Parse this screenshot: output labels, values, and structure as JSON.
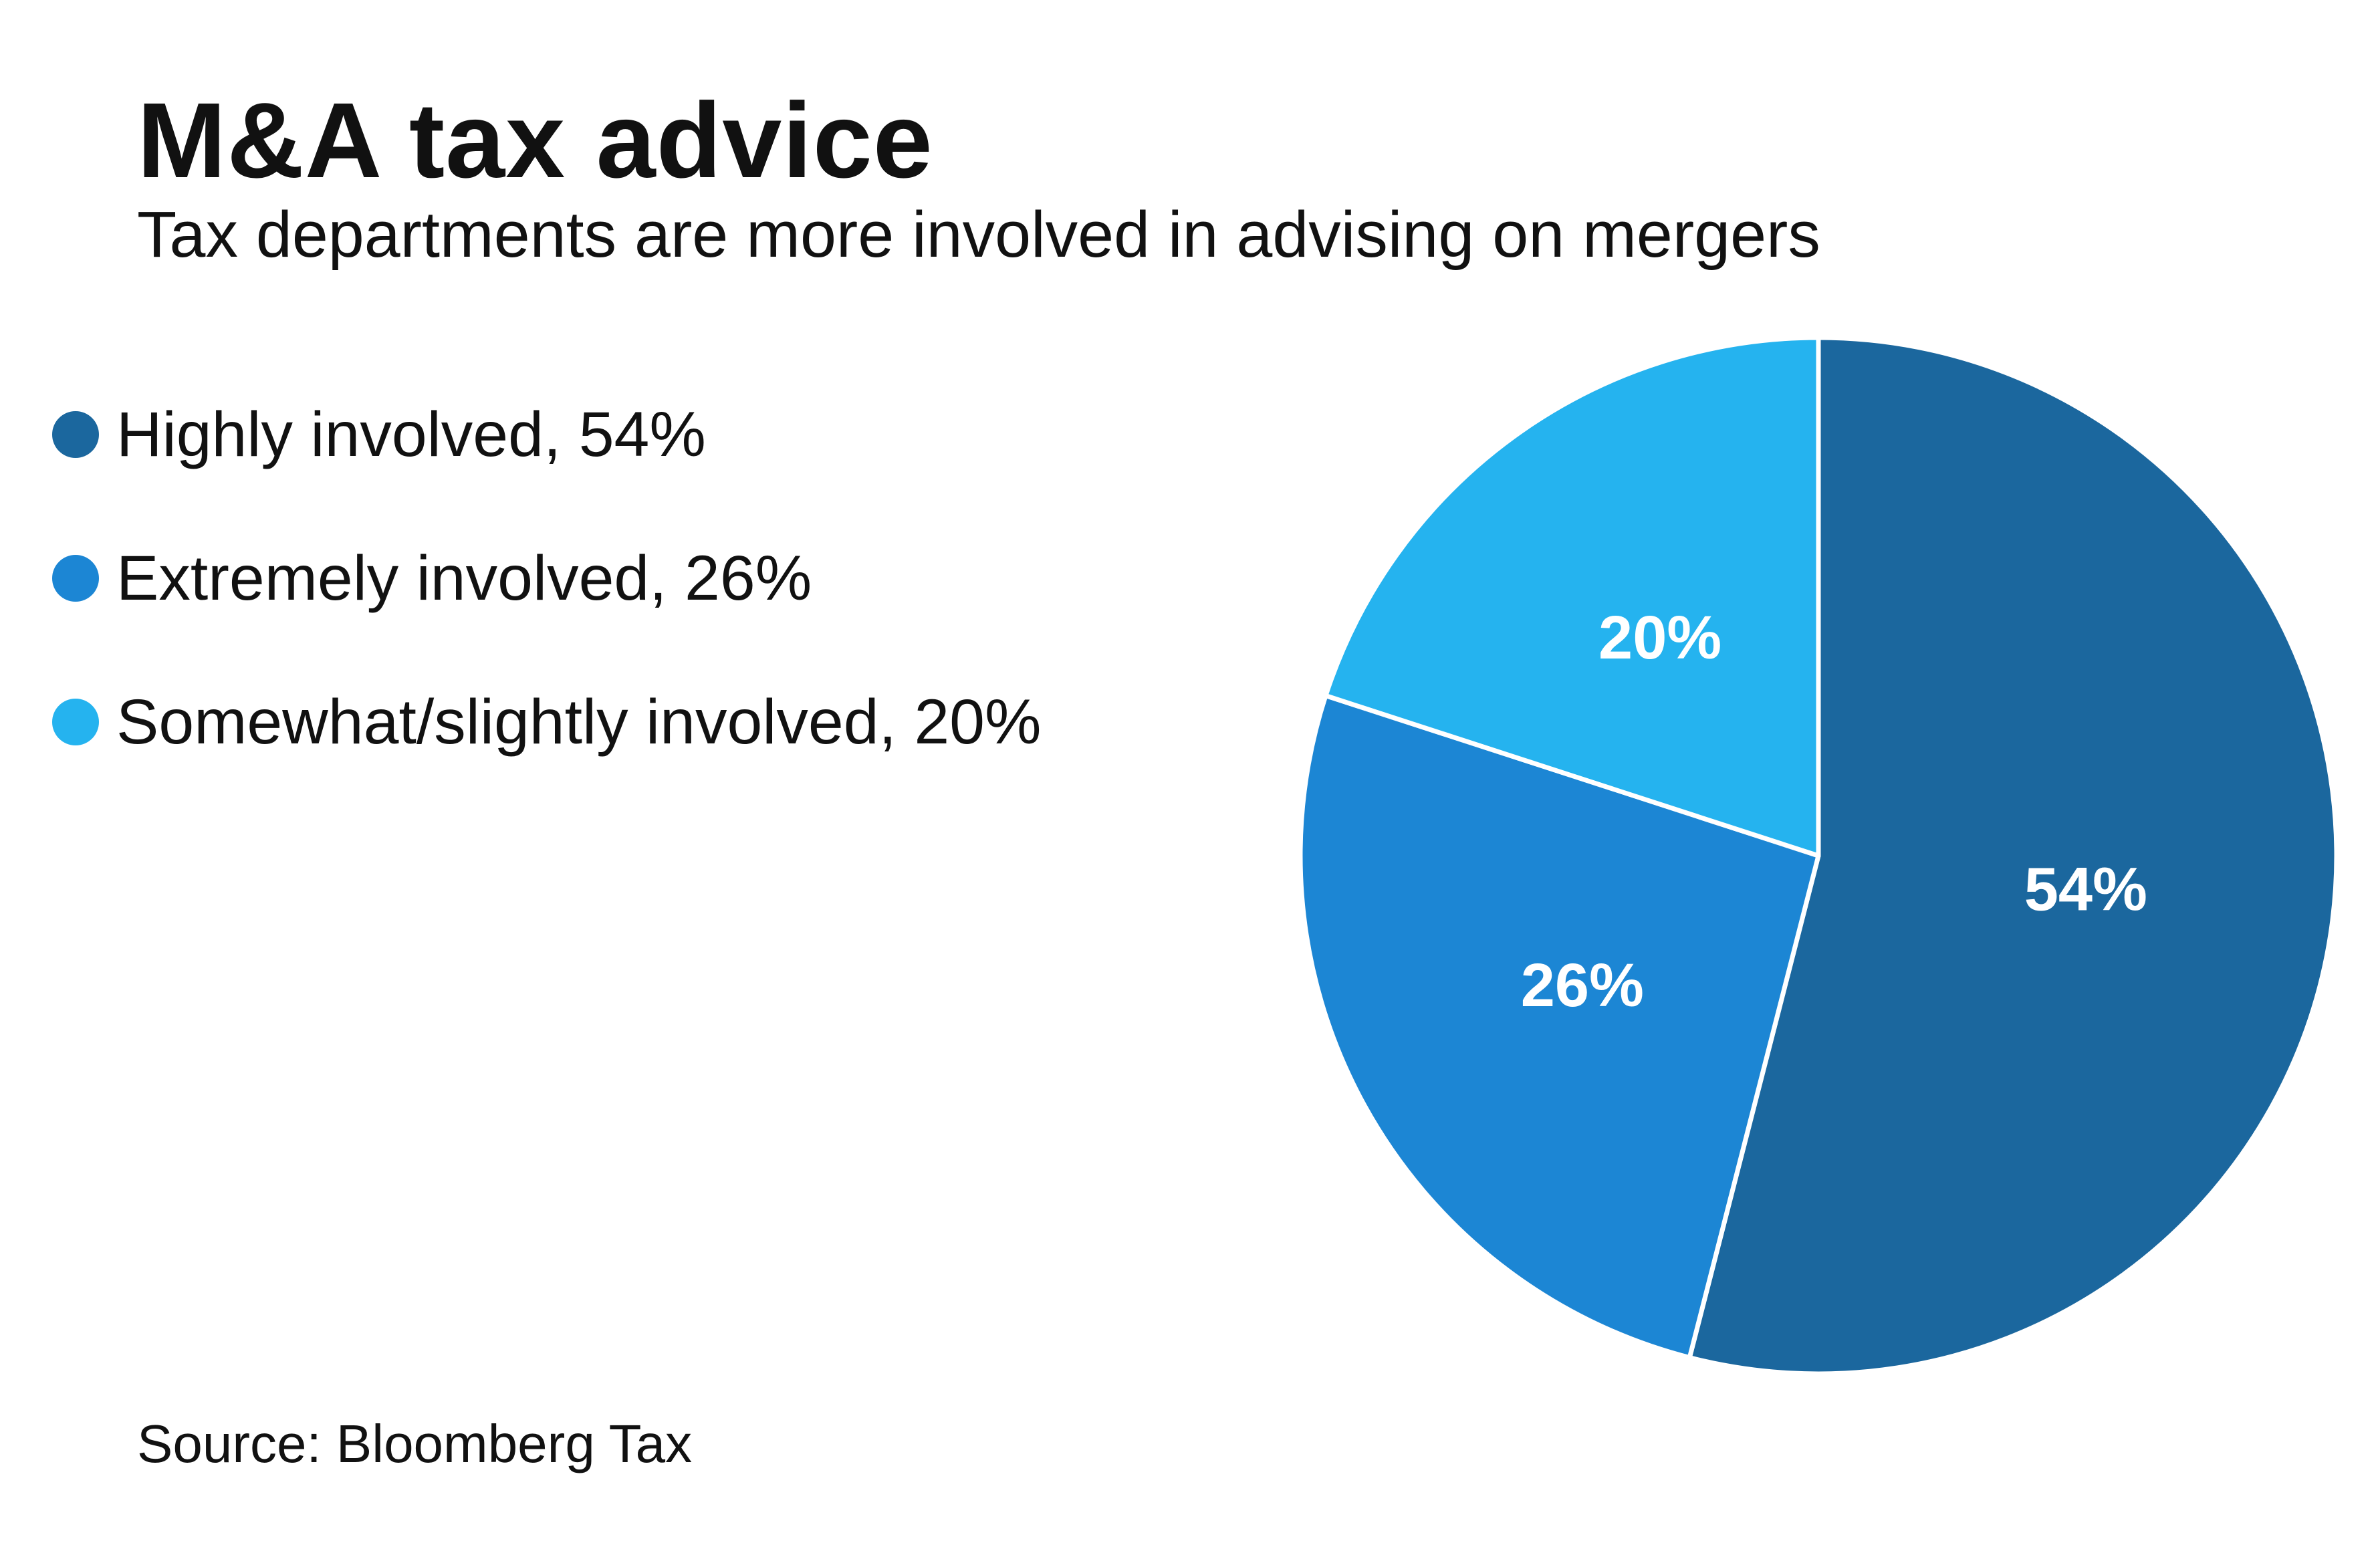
{
  "title": "M&A tax advice",
  "subtitle": "Tax departments are more involved in advising on mergers",
  "source": "Source: Bloomberg Tax",
  "legend": [
    {
      "label": "Highly involved, 54%",
      "color": "#1b679e"
    },
    {
      "label": "Extremely involved, 26%",
      "color": "#1c86d4"
    },
    {
      "label": "Somewhat/slightly involved, 20%",
      "color": "#25b3ef"
    }
  ],
  "chart_data": {
    "type": "pie",
    "title": "M&A tax advice",
    "subtitle": "Tax departments are more involved in advising on mergers",
    "categories": [
      "Highly involved",
      "Extremely involved",
      "Somewhat/slightly involved"
    ],
    "values": [
      54,
      26,
      20
    ],
    "unit": "%",
    "data_labels": [
      "54%",
      "26%",
      "20%"
    ],
    "colors": [
      "#1b679e",
      "#1c86d4",
      "#25b3ef"
    ],
    "start_angle": "12 o'clock",
    "direction": "clockwise",
    "legend_position": "left"
  }
}
